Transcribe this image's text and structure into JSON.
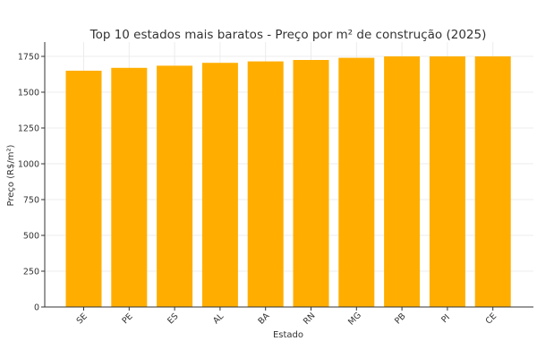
{
  "chart_data": {
    "type": "bar",
    "title": "Top 10 estados mais baratos - Preço por m² de construção (2025)",
    "xlabel": "Estado",
    "ylabel": "Preço (R$/m²)",
    "categories": [
      "SE",
      "PE",
      "ES",
      "AL",
      "BA",
      "RN",
      "MG",
      "PB",
      "PI",
      "CE"
    ],
    "values": [
      1650,
      1670,
      1685,
      1705,
      1715,
      1725,
      1740,
      1750,
      1750,
      1750
    ],
    "ylim": [
      0,
      1850
    ],
    "yticks": [
      0,
      250,
      500,
      750,
      1000,
      1250,
      1500,
      1750
    ],
    "grid": true,
    "bar_color": "#FFAE00"
  }
}
